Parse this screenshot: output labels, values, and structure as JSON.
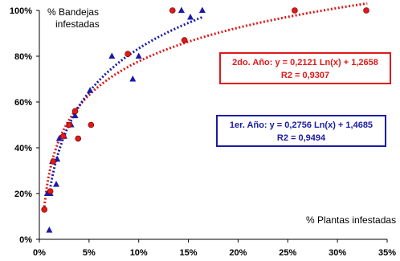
{
  "chart_data": {
    "type": "scatter",
    "title": "",
    "xlabel": "% Plantas infestadas",
    "ylabel_line1": "% Bandejas",
    "ylabel_line2": "infestadas",
    "xlim": [
      0,
      0.35
    ],
    "ylim": [
      0,
      1.0
    ],
    "x_ticks": [
      0,
      0.05,
      0.1,
      0.15,
      0.2,
      0.25,
      0.3,
      0.35
    ],
    "x_tick_labels": [
      "0%",
      "5%",
      "10%",
      "15%",
      "20%",
      "25%",
      "30%",
      "35%"
    ],
    "y_ticks": [
      0,
      0.2,
      0.4,
      0.6,
      0.8,
      1.0
    ],
    "y_tick_labels": [
      "0%",
      "20%",
      "40%",
      "60%",
      "80%",
      "100%"
    ],
    "grid": false,
    "colors": {
      "first_year": "#1a1aa8",
      "second_year": "#e01818"
    },
    "series": [
      {
        "key": "first_year",
        "marker": "triangle",
        "x": [
          0.01,
          0.008,
          0.011,
          0.013,
          0.017,
          0.018,
          0.02,
          0.025,
          0.032,
          0.036,
          0.051,
          0.073,
          0.094,
          0.1,
          0.143,
          0.152,
          0.164
        ],
        "y": [
          0.04,
          0.2,
          0.2,
          0.34,
          0.24,
          0.35,
          0.44,
          0.45,
          0.5,
          0.54,
          0.65,
          0.8,
          0.7,
          0.8,
          1.0,
          0.97,
          1.0
        ]
      },
      {
        "key": "second_year",
        "marker": "circle",
        "x": [
          0.005,
          0.011,
          0.014,
          0.024,
          0.03,
          0.036,
          0.039,
          0.052,
          0.089,
          0.134,
          0.146,
          0.257,
          0.329
        ],
        "y": [
          0.13,
          0.21,
          0.34,
          0.45,
          0.5,
          0.56,
          0.44,
          0.5,
          0.81,
          1.0,
          0.87,
          1.0,
          1.0
        ]
      }
    ],
    "trendlines": [
      {
        "key": "second_year",
        "type": "log",
        "a": 0.2121,
        "b": 1.2658,
        "x_range": [
          0.005,
          0.33
        ],
        "eq_text": "2do. Año: y = 0,2121 Ln(x) + 1,2658",
        "r2_text": "R2 = 0,9307"
      },
      {
        "key": "first_year",
        "type": "log",
        "a": 0.2756,
        "b": 1.4685,
        "x_range": [
          0.01,
          0.164
        ],
        "eq_text": "1er. Año: y = 0,2756 Ln(x) + 1,4685",
        "r2_text": "R2 = 0,9494"
      }
    ]
  }
}
